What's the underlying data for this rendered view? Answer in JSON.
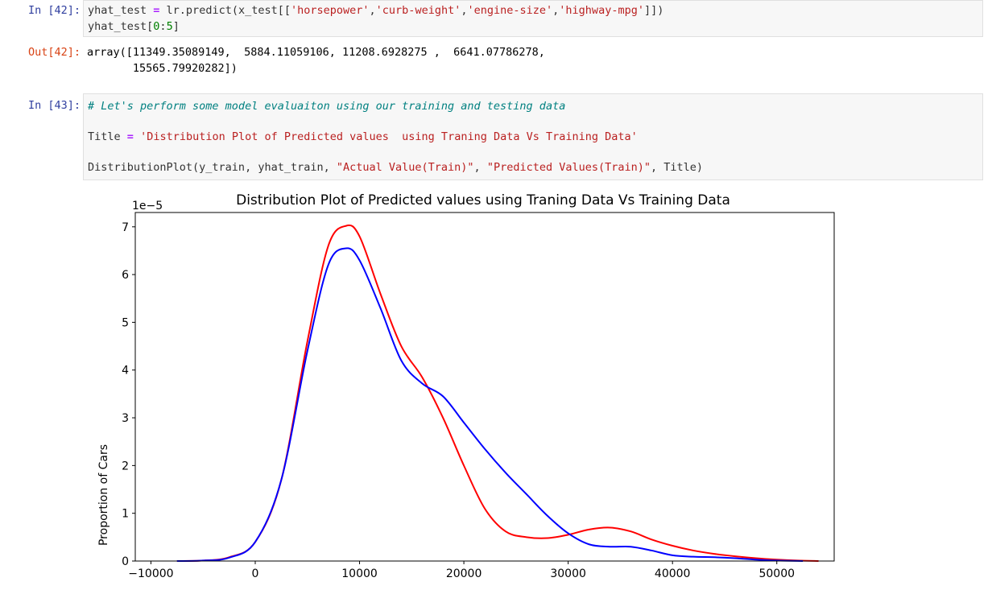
{
  "cells": [
    {
      "in_prompt": "In [42]:",
      "code": [
        {
          "tokens": [
            {
              "t": "yhat_test ",
              "c": ""
            },
            {
              "t": "=",
              "c": "op"
            },
            {
              "t": " lr.predict(x_test[[",
              "c": ""
            },
            {
              "t": "'horsepower'",
              "c": "str"
            },
            {
              "t": ",",
              "c": ""
            },
            {
              "t": "'curb-weight'",
              "c": "str"
            },
            {
              "t": ",",
              "c": ""
            },
            {
              "t": "'engine-size'",
              "c": "str"
            },
            {
              "t": ",",
              "c": ""
            },
            {
              "t": "'highway-mpg'",
              "c": "str"
            },
            {
              "t": "]])",
              "c": ""
            }
          ]
        },
        {
          "tokens": [
            {
              "t": "yhat_test[",
              "c": ""
            },
            {
              "t": "0",
              "c": "num"
            },
            {
              "t": ":",
              "c": ""
            },
            {
              "t": "5",
              "c": "num"
            },
            {
              "t": "]",
              "c": ""
            }
          ]
        }
      ],
      "out_prompt": "Out[42]:",
      "output": [
        "array([11349.35089149,  5884.11059106, 11208.6928275 ,  6641.07786278,",
        "       15565.79920282])"
      ]
    },
    {
      "in_prompt": "In [43]:",
      "code": [
        {
          "tokens": [
            {
              "t": "# Let's perform some model evaluaiton using our training and testing data",
              "c": "comment"
            }
          ]
        },
        {
          "tokens": []
        },
        {
          "tokens": [
            {
              "t": "Title ",
              "c": ""
            },
            {
              "t": "=",
              "c": "op"
            },
            {
              "t": " ",
              "c": ""
            },
            {
              "t": "'Distribution Plot of Predicted values  using Traning Data Vs Training Data'",
              "c": "str"
            }
          ]
        },
        {
          "tokens": []
        },
        {
          "tokens": [
            {
              "t": "DistributionPlot(y_train, yhat_train, ",
              "c": ""
            },
            {
              "t": "\"Actual Value(Train)\"",
              "c": "str"
            },
            {
              "t": ", ",
              "c": ""
            },
            {
              "t": "\"Predicted Values(Train)\"",
              "c": "str"
            },
            {
              "t": ", Title)",
              "c": ""
            }
          ]
        }
      ]
    }
  ],
  "colors": {
    "str": "#ba2121",
    "op": "#aa22ff",
    "num": "#008000",
    "comment": "#008080",
    "actual": "#ff0000",
    "predicted": "#0000ff"
  },
  "chart_data": {
    "type": "line",
    "title": "Distribution Plot of Predicted values  using Traning Data Vs Training Data",
    "ylabel": "Proportion of Cars",
    "y_offset_label": "1e−5",
    "xlim": [
      -11500,
      55500
    ],
    "ylim": [
      0,
      7.3
    ],
    "xticks": [
      -10000,
      0,
      10000,
      20000,
      30000,
      40000,
      50000
    ],
    "xtick_labels": [
      "−10000",
      "0",
      "10000",
      "20000",
      "30000",
      "40000",
      "50000"
    ],
    "yticks": [
      0,
      1,
      2,
      3,
      4,
      5,
      6,
      7
    ],
    "ytick_labels": [
      "0",
      "1",
      "2",
      "3",
      "4",
      "5",
      "6",
      "7"
    ],
    "series": [
      {
        "color": "#ff0000",
        "x": [
          -7500,
          -5000,
          -2500,
          0,
          2500,
          5000,
          7000,
          8700,
          10000,
          12000,
          14000,
          16000,
          18000,
          20000,
          22000,
          24000,
          26000,
          28000,
          30000,
          32000,
          34000,
          36000,
          38000,
          40000,
          42000,
          44000,
          46000,
          48000,
          50000,
          52000,
          54000
        ],
        "y": [
          0.0,
          0.01,
          0.08,
          0.4,
          1.7,
          4.6,
          6.6,
          7.02,
          6.8,
          5.6,
          4.5,
          3.85,
          3.0,
          2.0,
          1.1,
          0.62,
          0.5,
          0.48,
          0.55,
          0.66,
          0.7,
          0.62,
          0.45,
          0.32,
          0.22,
          0.15,
          0.1,
          0.06,
          0.03,
          0.01,
          0.0
        ]
      },
      {
        "color": "#0000ff",
        "x": [
          -7500,
          -5000,
          -2500,
          0,
          2500,
          5000,
          7000,
          8700,
          10000,
          12000,
          14000,
          16000,
          18000,
          20000,
          22000,
          24000,
          26000,
          28000,
          30000,
          32000,
          34000,
          36000,
          38000,
          40000,
          42000,
          44000,
          46000,
          48000,
          50000,
          52500
        ],
        "y": [
          0.0,
          0.01,
          0.07,
          0.4,
          1.7,
          4.4,
          6.2,
          6.55,
          6.3,
          5.3,
          4.2,
          3.72,
          3.45,
          2.9,
          2.35,
          1.85,
          1.4,
          0.95,
          0.58,
          0.35,
          0.3,
          0.3,
          0.22,
          0.12,
          0.09,
          0.08,
          0.06,
          0.03,
          0.01,
          0.0
        ]
      }
    ]
  }
}
